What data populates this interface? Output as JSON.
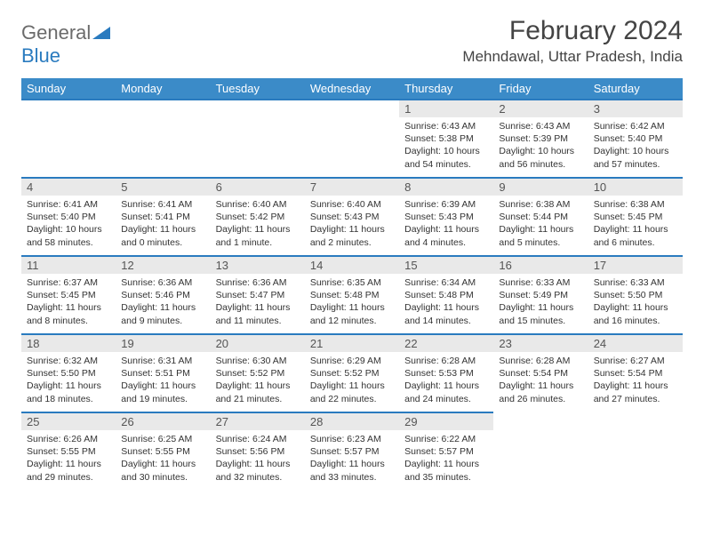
{
  "logo": {
    "text1": "General",
    "text2": "Blue"
  },
  "title": "February 2024",
  "location": "Mehndawal, Uttar Pradesh, India",
  "header_bg": "#3b8bc8",
  "border_color": "#2a7bbf",
  "daynum_bg": "#e9e9e9",
  "weekdays": [
    "Sunday",
    "Monday",
    "Tuesday",
    "Wednesday",
    "Thursday",
    "Friday",
    "Saturday"
  ],
  "weeks": [
    [
      null,
      null,
      null,
      null,
      {
        "n": "1",
        "sr": "6:43 AM",
        "ss": "5:38 PM",
        "dl": "10 hours and 54 minutes."
      },
      {
        "n": "2",
        "sr": "6:43 AM",
        "ss": "5:39 PM",
        "dl": "10 hours and 56 minutes."
      },
      {
        "n": "3",
        "sr": "6:42 AM",
        "ss": "5:40 PM",
        "dl": "10 hours and 57 minutes."
      }
    ],
    [
      {
        "n": "4",
        "sr": "6:41 AM",
        "ss": "5:40 PM",
        "dl": "10 hours and 58 minutes."
      },
      {
        "n": "5",
        "sr": "6:41 AM",
        "ss": "5:41 PM",
        "dl": "11 hours and 0 minutes."
      },
      {
        "n": "6",
        "sr": "6:40 AM",
        "ss": "5:42 PM",
        "dl": "11 hours and 1 minute."
      },
      {
        "n": "7",
        "sr": "6:40 AM",
        "ss": "5:43 PM",
        "dl": "11 hours and 2 minutes."
      },
      {
        "n": "8",
        "sr": "6:39 AM",
        "ss": "5:43 PM",
        "dl": "11 hours and 4 minutes."
      },
      {
        "n": "9",
        "sr": "6:38 AM",
        "ss": "5:44 PM",
        "dl": "11 hours and 5 minutes."
      },
      {
        "n": "10",
        "sr": "6:38 AM",
        "ss": "5:45 PM",
        "dl": "11 hours and 6 minutes."
      }
    ],
    [
      {
        "n": "11",
        "sr": "6:37 AM",
        "ss": "5:45 PM",
        "dl": "11 hours and 8 minutes."
      },
      {
        "n": "12",
        "sr": "6:36 AM",
        "ss": "5:46 PM",
        "dl": "11 hours and 9 minutes."
      },
      {
        "n": "13",
        "sr": "6:36 AM",
        "ss": "5:47 PM",
        "dl": "11 hours and 11 minutes."
      },
      {
        "n": "14",
        "sr": "6:35 AM",
        "ss": "5:48 PM",
        "dl": "11 hours and 12 minutes."
      },
      {
        "n": "15",
        "sr": "6:34 AM",
        "ss": "5:48 PM",
        "dl": "11 hours and 14 minutes."
      },
      {
        "n": "16",
        "sr": "6:33 AM",
        "ss": "5:49 PM",
        "dl": "11 hours and 15 minutes."
      },
      {
        "n": "17",
        "sr": "6:33 AM",
        "ss": "5:50 PM",
        "dl": "11 hours and 16 minutes."
      }
    ],
    [
      {
        "n": "18",
        "sr": "6:32 AM",
        "ss": "5:50 PM",
        "dl": "11 hours and 18 minutes."
      },
      {
        "n": "19",
        "sr": "6:31 AM",
        "ss": "5:51 PM",
        "dl": "11 hours and 19 minutes."
      },
      {
        "n": "20",
        "sr": "6:30 AM",
        "ss": "5:52 PM",
        "dl": "11 hours and 21 minutes."
      },
      {
        "n": "21",
        "sr": "6:29 AM",
        "ss": "5:52 PM",
        "dl": "11 hours and 22 minutes."
      },
      {
        "n": "22",
        "sr": "6:28 AM",
        "ss": "5:53 PM",
        "dl": "11 hours and 24 minutes."
      },
      {
        "n": "23",
        "sr": "6:28 AM",
        "ss": "5:54 PM",
        "dl": "11 hours and 26 minutes."
      },
      {
        "n": "24",
        "sr": "6:27 AM",
        "ss": "5:54 PM",
        "dl": "11 hours and 27 minutes."
      }
    ],
    [
      {
        "n": "25",
        "sr": "6:26 AM",
        "ss": "5:55 PM",
        "dl": "11 hours and 29 minutes."
      },
      {
        "n": "26",
        "sr": "6:25 AM",
        "ss": "5:55 PM",
        "dl": "11 hours and 30 minutes."
      },
      {
        "n": "27",
        "sr": "6:24 AM",
        "ss": "5:56 PM",
        "dl": "11 hours and 32 minutes."
      },
      {
        "n": "28",
        "sr": "6:23 AM",
        "ss": "5:57 PM",
        "dl": "11 hours and 33 minutes."
      },
      {
        "n": "29",
        "sr": "6:22 AM",
        "ss": "5:57 PM",
        "dl": "11 hours and 35 minutes."
      },
      null,
      null
    ]
  ],
  "labels": {
    "sunrise": "Sunrise: ",
    "sunset": "Sunset: ",
    "daylight": "Daylight: "
  }
}
